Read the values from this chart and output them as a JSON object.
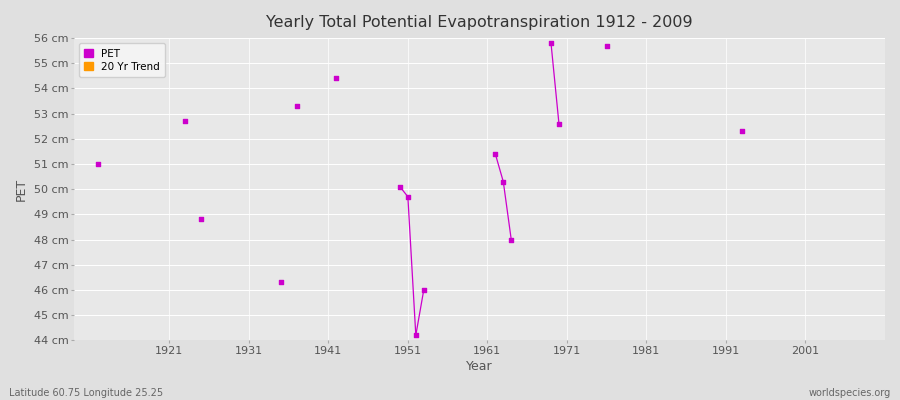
{
  "title": "Yearly Total Potential Evapotranspiration 1912 - 2009",
  "xlabel": "Year",
  "ylabel": "PET",
  "background_color": "#e0e0e0",
  "plot_background": "#e8e8e8",
  "grid_color": "#ffffff",
  "ylim": [
    44,
    56
  ],
  "xlim": [
    1909,
    2011
  ],
  "yticks": [
    44,
    45,
    46,
    47,
    48,
    49,
    50,
    51,
    52,
    53,
    54,
    55,
    56
  ],
  "xticks": [
    1921,
    1931,
    1941,
    1951,
    1961,
    1971,
    1981,
    1991,
    2001
  ],
  "pet_color": "#cc00cc",
  "trend_color": "#ff9900",
  "pet_data": [
    [
      1912,
      51.0
    ],
    [
      1923,
      52.7
    ],
    [
      1925,
      48.8
    ],
    [
      1935,
      46.3
    ],
    [
      1937,
      53.3
    ],
    [
      1942,
      54.4
    ],
    [
      1950,
      50.1
    ],
    [
      1951,
      49.7
    ],
    [
      1952,
      44.2
    ],
    [
      1953,
      46.0
    ],
    [
      1962,
      51.4
    ],
    [
      1963,
      50.3
    ],
    [
      1964,
      48.0
    ],
    [
      1969,
      55.8
    ],
    [
      1970,
      52.6
    ],
    [
      1976,
      55.7
    ],
    [
      1993,
      52.3
    ]
  ],
  "footnote_left": "Latitude 60.75 Longitude 25.25",
  "footnote_right": "worldspecies.org"
}
